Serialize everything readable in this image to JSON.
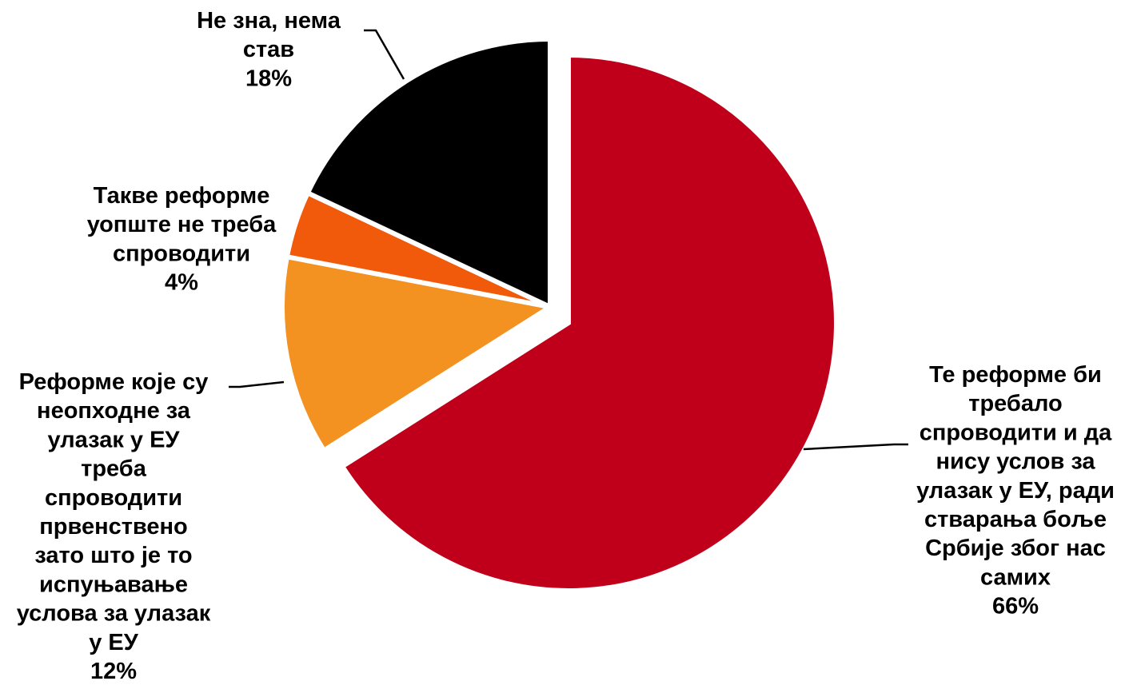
{
  "chart_data": {
    "type": "pie",
    "slices": [
      {
        "label": "Те реформе би требало спроводити и да нису услов за улазак у ЕУ, ради стварања боље Србије због нас самих",
        "label_lines": [
          "Те реформе би",
          "требало",
          "спроводити и да",
          "нису услов за",
          "улазак у ЕУ, ради",
          "стварања боље",
          "Србије због нас",
          "самих"
        ],
        "value": 66,
        "value_text": "66%",
        "color": "#c0001a",
        "exploded": true
      },
      {
        "label": "Реформе које су неопходне за улазак у ЕУ треба спроводити првенствено зато што је то испуњавање услова за улазак у ЕУ",
        "label_lines": [
          "Реформе које су",
          "неопходне за",
          "улазак у ЕУ",
          "треба",
          "спроводити",
          "првенствено",
          "зато што је то",
          "испуњавање",
          "услова за улазак",
          "у ЕУ"
        ],
        "value": 12,
        "value_text": "12%",
        "color": "#f39221",
        "exploded": false
      },
      {
        "label": "Такве реформе уопште не треба спроводити",
        "label_lines": [
          "Такве реформе",
          "уопште не треба",
          "спроводити"
        ],
        "value": 4,
        "value_text": "4%",
        "color": "#f05a0a",
        "exploded": false
      },
      {
        "label": "Не зна, нема став",
        "label_lines": [
          "Не зна, нема",
          "став"
        ],
        "value": 18,
        "value_text": "18%",
        "color": "#000000",
        "exploded": false
      }
    ],
    "start_angle": "12 o'clock",
    "direction": "clockwise",
    "legend": "none",
    "label_style": "category name and percentage outside slices with leader lines"
  }
}
